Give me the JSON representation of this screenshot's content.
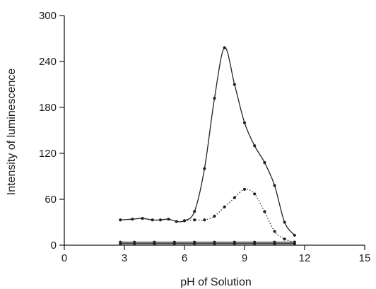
{
  "chart_data": {
    "type": "line",
    "title": "",
    "xlabel": "pH of Solution",
    "ylabel": "Intensity of luminescence",
    "xlim": [
      0,
      15
    ],
    "ylim": [
      0,
      300
    ],
    "xticks": [
      "0",
      "3",
      "6",
      "9",
      "12",
      "15"
    ],
    "yticks": [
      "0",
      "60",
      "120",
      "180",
      "240",
      "300"
    ],
    "grid": false,
    "legend": "none",
    "series": [
      {
        "style": "solid",
        "color": "#222222",
        "x": [
          2.8,
          3.4,
          3.9,
          4.4,
          4.8,
          5.2,
          5.6,
          6.0,
          6.5,
          7.0,
          7.5,
          8.0,
          8.5,
          9.0,
          9.5,
          10.0,
          10.5,
          11.0,
          11.5
        ],
        "y": [
          33,
          34,
          35,
          33,
          33,
          34,
          31,
          32,
          44,
          100,
          192,
          258,
          210,
          160,
          130,
          108,
          78,
          30,
          13
        ]
      },
      {
        "style": "dotted",
        "color": "#222222",
        "x": [
          6.0,
          6.5,
          7.0,
          7.5,
          8.0,
          8.5,
          9.0,
          9.5,
          10.0,
          10.5,
          11.0,
          11.5
        ],
        "y": [
          32,
          33,
          33,
          38,
          50,
          62,
          73,
          67,
          44,
          18,
          8,
          4
        ]
      },
      {
        "style": "solid",
        "color": "#222222",
        "x": [
          2.8,
          3.5,
          4.5,
          5.5,
          6.5,
          7.5,
          8.5,
          9.5,
          10.5,
          11.5
        ],
        "y": [
          4,
          4,
          4,
          4,
          4,
          4,
          4,
          4,
          4,
          4
        ]
      },
      {
        "style": "solid",
        "color": "#222222",
        "x": [
          2.8,
          3.5,
          4.5,
          5.5,
          6.5,
          7.5,
          8.5,
          9.5,
          10.5,
          11.5
        ],
        "y": [
          2,
          2,
          2,
          2,
          2,
          2,
          2,
          2,
          2,
          2
        ]
      }
    ]
  }
}
